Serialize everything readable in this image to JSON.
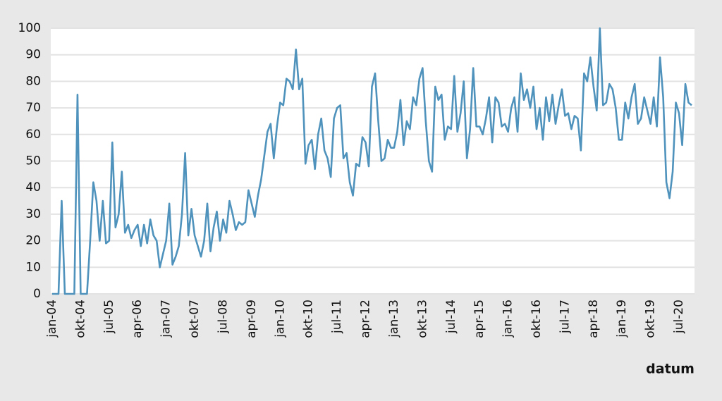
{
  "chart_data": {
    "type": "line",
    "x_label": "datum",
    "categories": [
      "jan-04",
      null,
      null,
      null,
      null,
      null,
      null,
      null,
      null,
      "okt-04",
      null,
      null,
      null,
      null,
      null,
      null,
      null,
      null,
      "jul-05",
      null,
      null,
      null,
      null,
      null,
      null,
      null,
      null,
      "apr-06",
      null,
      null,
      null,
      null,
      null,
      null,
      null,
      null,
      "jan-07",
      null,
      null,
      null,
      null,
      null,
      null,
      null,
      null,
      "okt-07",
      null,
      null,
      null,
      null,
      null,
      null,
      null,
      null,
      "jul-08",
      null,
      null,
      null,
      null,
      null,
      null,
      null,
      null,
      "apr-09",
      null,
      null,
      null,
      null,
      null,
      null,
      null,
      null,
      "jan-10",
      null,
      null,
      null,
      null,
      null,
      null,
      null,
      null,
      "okt-10",
      null,
      null,
      null,
      null,
      null,
      null,
      null,
      null,
      "jul-11",
      null,
      null,
      null,
      null,
      null,
      null,
      null,
      null,
      "apr-12",
      null,
      null,
      null,
      null,
      null,
      null,
      null,
      null,
      "jan-13",
      null,
      null,
      null,
      null,
      null,
      null,
      null,
      null,
      "okt-13",
      null,
      null,
      null,
      null,
      null,
      null,
      null,
      null,
      "jul-14",
      null,
      null,
      null,
      null,
      null,
      null,
      null,
      null,
      "apr-15",
      null,
      null,
      null,
      null,
      null,
      null,
      null,
      null,
      "jan-16",
      null,
      null,
      null,
      null,
      null,
      null,
      null,
      null,
      "okt-16",
      null,
      null,
      null,
      null,
      null,
      null,
      null,
      null,
      "jul-17",
      null,
      null,
      null,
      null,
      null,
      null,
      null,
      null,
      "apr-18",
      null,
      null,
      null,
      null,
      null,
      null,
      null,
      null,
      "jan-19",
      null,
      null,
      null,
      null,
      null,
      null,
      null,
      null,
      "okt-19",
      null,
      null,
      null,
      null,
      null,
      null,
      null,
      null,
      "jul-20",
      null,
      null,
      null,
      null
    ],
    "values": [
      0,
      0,
      0,
      35,
      0,
      0,
      0,
      0,
      75,
      0,
      0,
      0,
      20,
      42,
      35,
      20,
      35,
      19,
      20,
      57,
      25,
      30,
      46,
      23,
      26,
      21,
      24,
      26,
      18,
      26,
      19,
      28,
      22,
      20,
      10,
      15,
      20,
      34,
      11,
      14,
      18,
      30,
      53,
      22,
      32,
      22,
      18,
      14,
      20,
      34,
      16,
      25,
      31,
      20,
      28,
      23,
      35,
      30,
      24,
      27,
      26,
      27,
      39,
      34,
      29,
      37,
      43,
      52,
      61,
      64,
      51,
      63,
      72,
      71,
      81,
      80,
      77,
      92,
      77,
      81,
      49,
      56,
      58,
      47,
      60,
      66,
      54,
      51,
      44,
      66,
      70,
      71,
      51,
      53,
      42,
      37,
      49,
      48,
      59,
      57,
      48,
      78,
      83,
      65,
      50,
      51,
      58,
      55,
      55,
      61,
      73,
      56,
      65,
      62,
      74,
      71,
      81,
      85,
      65,
      50,
      46,
      78,
      73,
      75,
      58,
      63,
      62,
      82,
      61,
      68,
      80,
      51,
      62,
      85,
      63,
      63,
      60,
      66,
      74,
      57,
      74,
      72,
      63,
      64,
      61,
      70,
      74,
      61,
      83,
      73,
      77,
      70,
      78,
      62,
      70,
      58,
      74,
      65,
      75,
      64,
      71,
      77,
      67,
      68,
      62,
      67,
      66,
      54,
      83,
      80,
      89,
      78,
      69,
      100,
      71,
      72,
      79,
      77,
      70,
      58,
      58,
      72,
      66,
      74,
      79,
      64,
      66,
      74,
      69,
      64,
      74,
      63,
      89,
      74,
      42,
      36,
      46,
      72,
      68,
      56,
      79,
      72,
      71
    ],
    "color": "#4f93bd",
    "ylim": [
      0,
      100
    ],
    "yticks": [
      0,
      10,
      20,
      30,
      40,
      50,
      60,
      70,
      80,
      90,
      100
    ],
    "grid": true
  }
}
